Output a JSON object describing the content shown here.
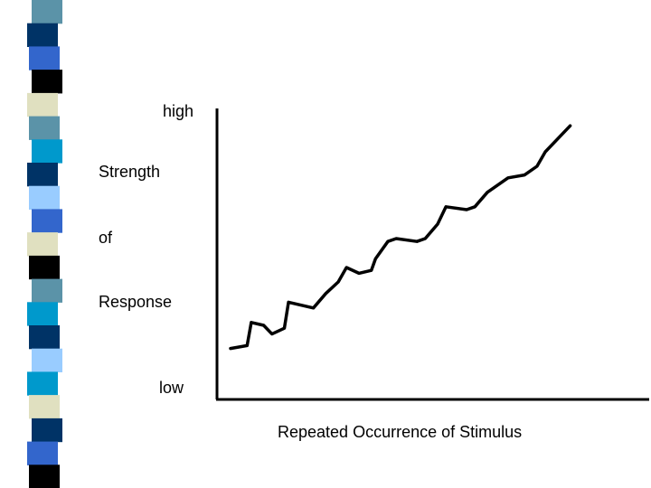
{
  "stripe": {
    "colors": [
      "#5b93a8",
      "#003366",
      "#3366cc",
      "#000000",
      "#e0e0c0",
      "#5b93a8",
      "#0099cc",
      "#003366",
      "#99ccff",
      "#3366cc",
      "#e0e0c0",
      "#000000",
      "#5b93a8",
      "#0099cc",
      "#003366",
      "#99ccff",
      "#0099cc",
      "#e0e0c0",
      "#003366",
      "#3366cc",
      "#000000"
    ]
  },
  "chart_data": {
    "type": "line",
    "ylabel": [
      "Strength",
      "of",
      "Response"
    ],
    "y_high_label": "high",
    "y_low_label": "low",
    "xlabel": "Repeated Occurrence of Stimulus",
    "grid": false,
    "legend": "none",
    "xlim": [
      0,
      100
    ],
    "ylim": [
      0,
      100
    ],
    "series": [
      {
        "color": "#000000",
        "points": [
          [
            0,
            17
          ],
          [
            4,
            18
          ],
          [
            5,
            26
          ],
          [
            8,
            25
          ],
          [
            10,
            22
          ],
          [
            13,
            24
          ],
          [
            14,
            33
          ],
          [
            20,
            31
          ],
          [
            23,
            36
          ],
          [
            26,
            40
          ],
          [
            28,
            45
          ],
          [
            31,
            43
          ],
          [
            34,
            44
          ],
          [
            35,
            48
          ],
          [
            38,
            54
          ],
          [
            40,
            55
          ],
          [
            45,
            54
          ],
          [
            47,
            55
          ],
          [
            50,
            60
          ],
          [
            52,
            66
          ],
          [
            57,
            65
          ],
          [
            59,
            66
          ],
          [
            62,
            71
          ],
          [
            67,
            76
          ],
          [
            71,
            77
          ],
          [
            74,
            80
          ],
          [
            76,
            85
          ],
          [
            80,
            91
          ],
          [
            82,
            94
          ]
        ]
      }
    ]
  }
}
